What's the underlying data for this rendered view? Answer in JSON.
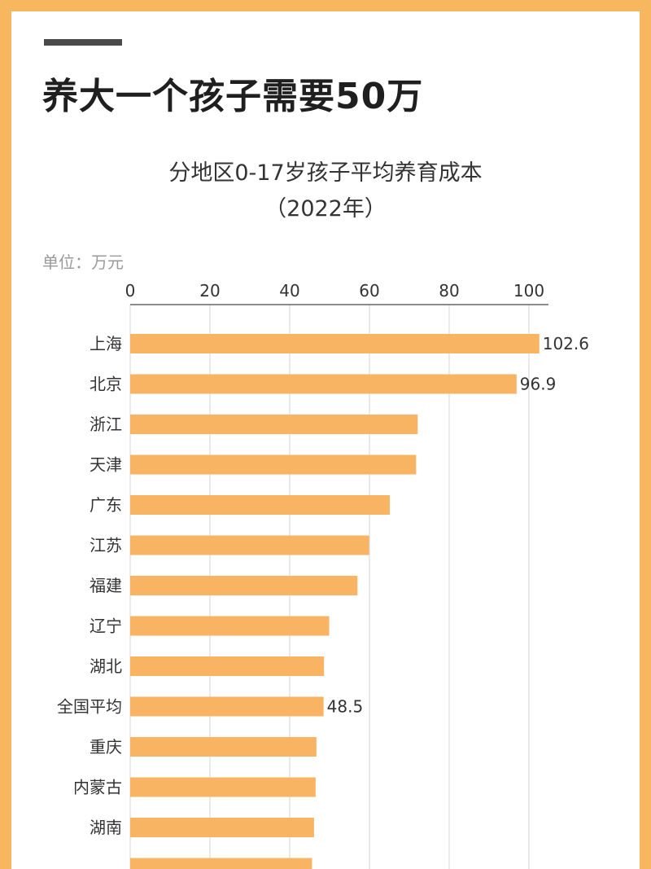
{
  "headline": "养大一个孩子需要50万",
  "colors": {
    "frame": "#f7b75f",
    "bar": "#f9b463",
    "text": "#333333"
  },
  "chart_data": {
    "type": "bar",
    "orientation": "horizontal",
    "title": "分地区0-17岁孩子平均养育成本",
    "subtitle": "（2022年）",
    "unit": "单位：万元",
    "xlim": [
      0,
      100
    ],
    "xticks": [
      0,
      20,
      40,
      60,
      80,
      100
    ],
    "categories": [
      "上海",
      "北京",
      "浙江",
      "天津",
      "广东",
      "江苏",
      "福建",
      "辽宁",
      "湖北",
      "全国平均",
      "重庆",
      "内蒙古",
      "湖南"
    ],
    "values": [
      102.6,
      96.9,
      72.1,
      71.7,
      65.1,
      59.9,
      57.0,
      49.9,
      48.6,
      48.5,
      46.7,
      46.5,
      46.1
    ],
    "data_labels": {
      "上海": "102.6",
      "北京": "96.9",
      "全国平均": "48.5"
    },
    "grid": true
  }
}
